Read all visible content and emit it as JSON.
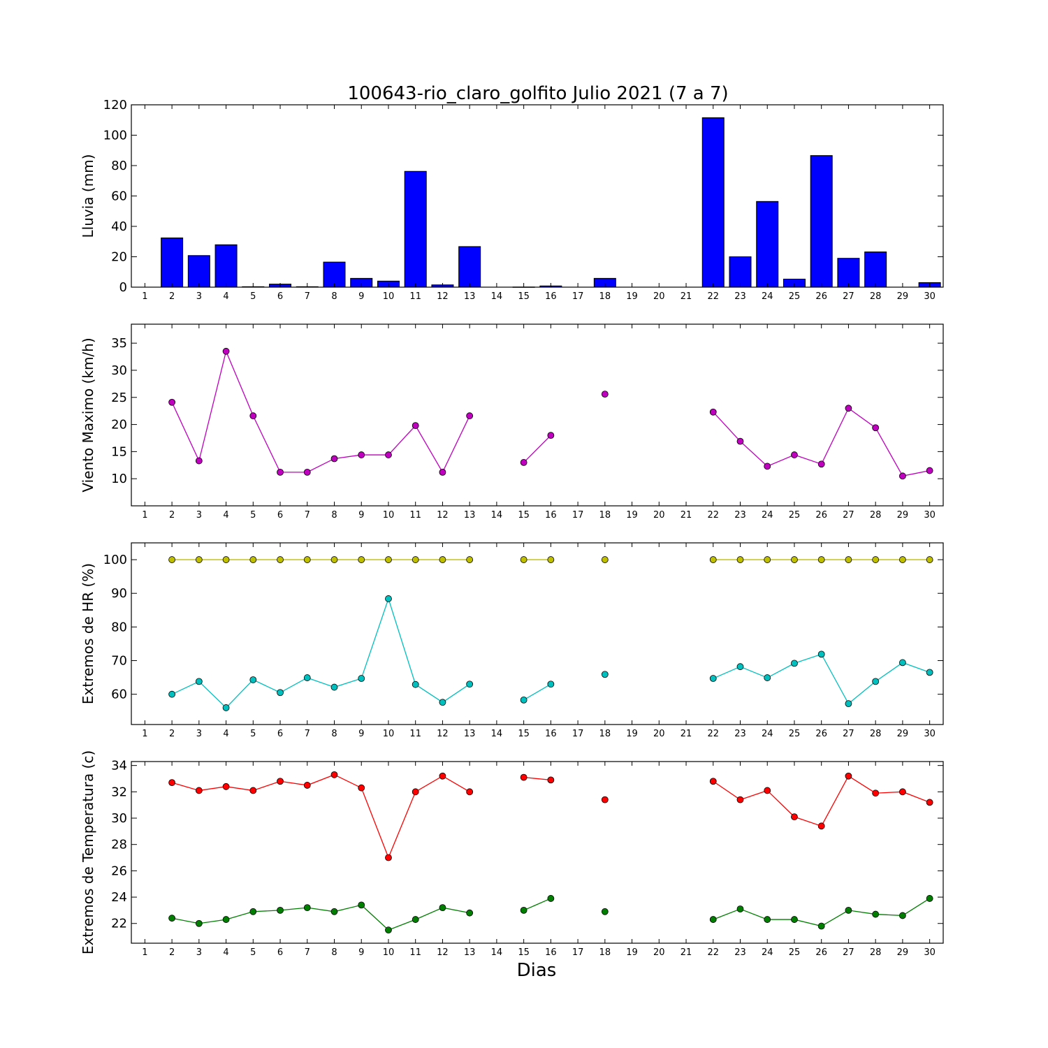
{
  "figure": {
    "title": "100643-rio_claro_golfito Julio 2021  (7 a 7)",
    "xlabel": "Dias"
  },
  "chart_data": [
    {
      "id": "rain",
      "type": "bar",
      "title": "100643-rio_claro_golfito Julio 2021  (7 a 7)",
      "ylabel": "Lluvia (mm)",
      "xlabel": "",
      "xlim": [
        0.5,
        30.5
      ],
      "ylim": [
        0,
        120
      ],
      "yticks": [
        0,
        20,
        40,
        60,
        80,
        100,
        120
      ],
      "categories": [
        "1",
        "2",
        "3",
        "4",
        "5",
        "6",
        "7",
        "8",
        "9",
        "10",
        "11",
        "12",
        "13",
        "14",
        "15",
        "16",
        "17",
        "18",
        "19",
        "20",
        "21",
        "22",
        "23",
        "24",
        "25",
        "26",
        "27",
        "28",
        "29",
        "30"
      ],
      "series": [
        {
          "color": "#0000ff",
          "values": [
            null,
            32.4,
            20.8,
            27.9,
            0.3,
            2.0,
            0.3,
            16.5,
            5.8,
            4.0,
            76.2,
            1.5,
            26.7,
            null,
            0.1,
            0.8,
            null,
            5.8,
            null,
            null,
            null,
            111.5,
            20.0,
            56.4,
            5.3,
            86.6,
            19.0,
            23.2,
            null,
            3.0
          ]
        }
      ],
      "grid": false
    },
    {
      "id": "wind",
      "type": "line",
      "ylabel": "Viento Maximo (km/h)",
      "xlabel": "",
      "xlim": [
        0.5,
        30.5
      ],
      "ylim": [
        5,
        38.5
      ],
      "yticks": [
        10,
        15,
        20,
        25,
        30,
        35
      ],
      "x": [
        1,
        2,
        3,
        4,
        5,
        6,
        7,
        8,
        9,
        10,
        11,
        12,
        13,
        14,
        15,
        16,
        17,
        18,
        19,
        20,
        21,
        22,
        23,
        24,
        25,
        26,
        27,
        28,
        29,
        30
      ],
      "series": [
        {
          "color": "#bf00bf",
          "values": [
            null,
            24.1,
            13.3,
            33.5,
            21.6,
            11.2,
            11.2,
            13.7,
            14.4,
            14.4,
            19.8,
            11.2,
            21.6,
            null,
            13.0,
            18.0,
            null,
            25.6,
            null,
            null,
            null,
            22.3,
            16.9,
            12.3,
            14.4,
            12.7,
            23.0,
            19.4,
            10.5,
            11.5
          ]
        }
      ],
      "grid": false
    },
    {
      "id": "humidity",
      "type": "line",
      "ylabel": "Extremos de HR (%)",
      "xlabel": "",
      "xlim": [
        0.5,
        30.5
      ],
      "ylim": [
        51,
        105
      ],
      "yticks": [
        60,
        70,
        80,
        90,
        100
      ],
      "x": [
        1,
        2,
        3,
        4,
        5,
        6,
        7,
        8,
        9,
        10,
        11,
        12,
        13,
        14,
        15,
        16,
        17,
        18,
        19,
        20,
        21,
        22,
        23,
        24,
        25,
        26,
        27,
        28,
        29,
        30
      ],
      "series": [
        {
          "color": "#bfbf00",
          "values": [
            null,
            100,
            100,
            100,
            100,
            100,
            100,
            100,
            100,
            100,
            100,
            100,
            100,
            null,
            100,
            100,
            null,
            100,
            null,
            null,
            null,
            100,
            100,
            100,
            100,
            100,
            100,
            100,
            100,
            100
          ]
        },
        {
          "color": "#00bfbf",
          "values": [
            null,
            60.0,
            63.8,
            56.0,
            64.3,
            60.5,
            64.9,
            62.1,
            64.7,
            88.4,
            62.9,
            57.6,
            63.0,
            null,
            58.3,
            63.0,
            null,
            65.9,
            null,
            null,
            null,
            64.7,
            68.2,
            64.9,
            69.2,
            71.9,
            57.2,
            63.8,
            69.4,
            66.5
          ]
        }
      ],
      "grid": false
    },
    {
      "id": "temperature",
      "type": "line",
      "ylabel": "Extremos de Temperatura (c)",
      "xlabel": "Dias",
      "xlim": [
        0.5,
        30.5
      ],
      "ylim": [
        20.5,
        34.3
      ],
      "yticks": [
        22,
        24,
        26,
        28,
        30,
        32,
        34
      ],
      "x": [
        1,
        2,
        3,
        4,
        5,
        6,
        7,
        8,
        9,
        10,
        11,
        12,
        13,
        14,
        15,
        16,
        17,
        18,
        19,
        20,
        21,
        22,
        23,
        24,
        25,
        26,
        27,
        28,
        29,
        30
      ],
      "series": [
        {
          "color": "#ff0000",
          "values": [
            null,
            32.7,
            32.1,
            32.4,
            32.1,
            32.8,
            32.5,
            33.3,
            32.3,
            27.0,
            32.0,
            33.2,
            32.0,
            null,
            33.1,
            32.9,
            null,
            31.4,
            null,
            null,
            null,
            32.8,
            31.4,
            32.1,
            30.1,
            29.4,
            33.2,
            31.9,
            32.0,
            31.2
          ]
        },
        {
          "color": "#007f00",
          "values": [
            null,
            22.4,
            22.0,
            22.3,
            22.9,
            23.0,
            23.2,
            22.9,
            23.4,
            21.5,
            22.3,
            23.2,
            22.8,
            null,
            23.0,
            23.9,
            null,
            22.9,
            null,
            null,
            null,
            22.3,
            23.1,
            22.3,
            22.3,
            21.8,
            23.0,
            22.7,
            22.6,
            23.9
          ]
        }
      ],
      "grid": false
    }
  ]
}
